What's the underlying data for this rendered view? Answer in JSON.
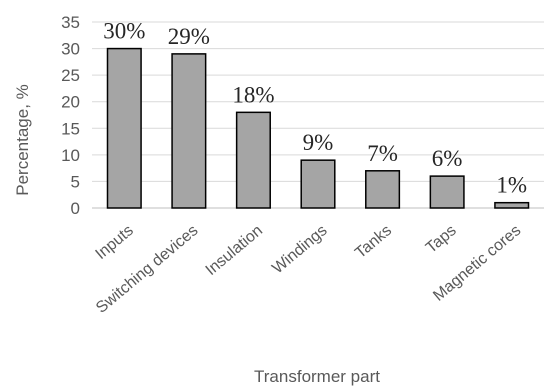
{
  "chart_data": {
    "type": "bar",
    "title": "",
    "xlabel": "Transformer part",
    "ylabel": "Percentage, %",
    "categories": [
      "Inputs",
      "Switching devices",
      "Insulation",
      "Windings",
      "Tanks",
      "Taps",
      "Magnetic cores"
    ],
    "values": [
      30,
      29,
      18,
      9,
      7,
      6,
      1
    ],
    "data_labels": [
      "30%",
      "29%",
      "18%",
      "9%",
      "7%",
      "6%",
      "1%"
    ],
    "yticks": [
      0,
      5,
      10,
      15,
      20,
      25,
      30,
      35
    ],
    "ylim": [
      0,
      35
    ],
    "grid": true,
    "legend": "none",
    "colors": {
      "bar_fill": "#a5a5a5",
      "bar_stroke": "#000000",
      "grid": "#d9d9d9",
      "text": "#595959"
    }
  }
}
